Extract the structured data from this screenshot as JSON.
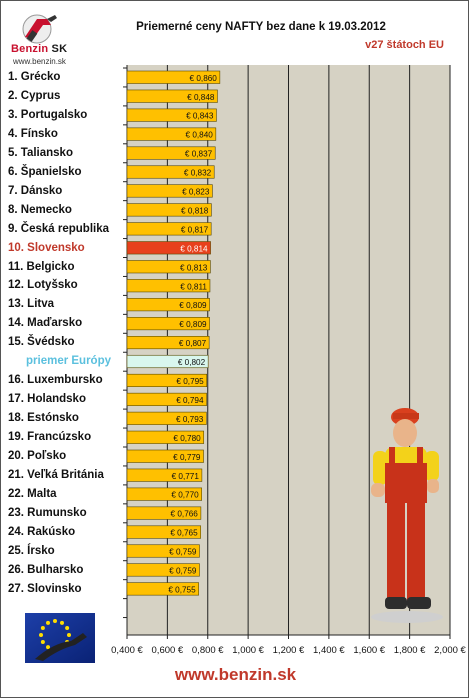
{
  "header": {
    "title": "Priemerné ceny NAFTY bez dane k 19.03.2012",
    "subtitle": "v27 štátoch EU",
    "logo_brand": "Benzin",
    "logo_brand_suffix": "SK",
    "logo_url": "www.benzin.sk"
  },
  "footer": {
    "url": "www.benzin.sk"
  },
  "colors": {
    "bar": "#ffc000",
    "bar_highlight": "#e8401c",
    "bar_average": "#d9f7ee",
    "plot_background": "#d6d2c4",
    "label_highlight": "#c0392b",
    "label_average": "#5bc0de"
  },
  "chart_data": {
    "type": "bar",
    "orientation": "horizontal",
    "categories": [
      "1. Grécko",
      "2. Cyprus",
      "3. Portugalsko",
      "4. Fínsko",
      "5. Taliansko",
      "6. Španielsko",
      "7. Dánsko",
      "8. Nemecko",
      "9. Česká republika",
      "10. Slovensko",
      "11. Belgicko",
      "12. Lotyšsko",
      "13. Litva",
      "14. Maďarsko",
      "15. Švédsko",
      "priemer Európy",
      "16. Luxembursko",
      "17. Holandsko",
      "18. Estónsko",
      "19. Francúzsko",
      "20. Poľsko",
      "21. Veľká Británia",
      "22. Malta",
      "23. Rumunsko",
      "24. Rakúsko",
      "25. Írsko",
      "26. Bulharsko",
      "27. Slovinsko"
    ],
    "values": [
      0.86,
      0.848,
      0.843,
      0.84,
      0.837,
      0.832,
      0.823,
      0.818,
      0.817,
      0.814,
      0.813,
      0.811,
      0.809,
      0.809,
      0.807,
      0.802,
      0.795,
      0.794,
      0.793,
      0.78,
      0.779,
      0.771,
      0.77,
      0.766,
      0.765,
      0.759,
      0.759,
      0.755
    ],
    "value_labels": [
      "€ 0,860",
      "€ 0,848",
      "€ 0,843",
      "€ 0,840",
      "€ 0,837",
      "€ 0,832",
      "€ 0,823",
      "€ 0,818",
      "€ 0,817",
      "€ 0,814",
      "€ 0,813",
      "€ 0,811",
      "€ 0,809",
      "€ 0,809",
      "€ 0,807",
      "€ 0,802",
      "€ 0,795",
      "€ 0,794",
      "€ 0,793",
      "€ 0,780",
      "€ 0,779",
      "€ 0,771",
      "€ 0,770",
      "€ 0,766",
      "€ 0,765",
      "€ 0,759",
      "€ 0,759",
      "€ 0,755"
    ],
    "highlight": "10. Slovensko",
    "average": "priemer Európy",
    "xlim": [
      0.4,
      2.0
    ],
    "xticks": [
      0.4,
      0.6,
      0.8,
      1.0,
      1.2,
      1.4,
      1.6,
      1.8,
      2.0
    ],
    "xtick_labels": [
      "0,400 €",
      "0,600 €",
      "0,800 €",
      "1,000 €",
      "1,200 €",
      "1,400 €",
      "1,600 €",
      "1,800 €",
      "2,000 €"
    ],
    "grid": true,
    "legend": "none"
  }
}
